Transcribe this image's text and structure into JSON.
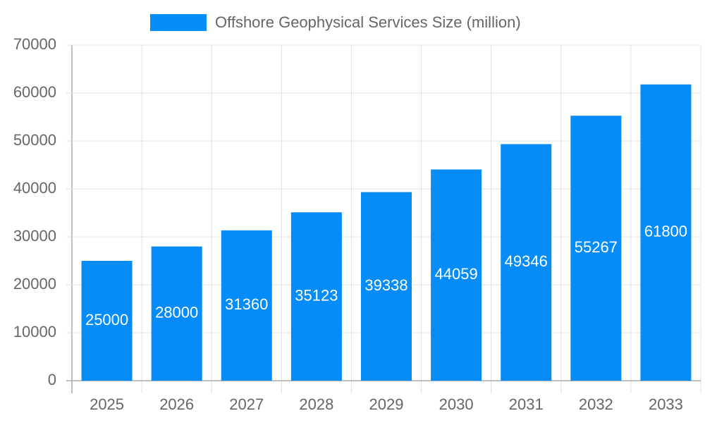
{
  "chart_data": {
    "type": "bar",
    "categories": [
      "2025",
      "2026",
      "2027",
      "2028",
      "2029",
      "2030",
      "2031",
      "2032",
      "2033"
    ],
    "series": [
      {
        "name": "Offshore Geophysical Services Size (million)",
        "color": "#058cf9",
        "values": [
          25000,
          28000,
          31360,
          35123,
          39338,
          44059,
          49346,
          55267,
          61800
        ]
      }
    ],
    "ylim": [
      0,
      70000
    ],
    "yticks": [
      0,
      10000,
      20000,
      30000,
      40000,
      50000,
      60000,
      70000
    ],
    "grid": true,
    "legend": "top",
    "data_labels": true
  }
}
